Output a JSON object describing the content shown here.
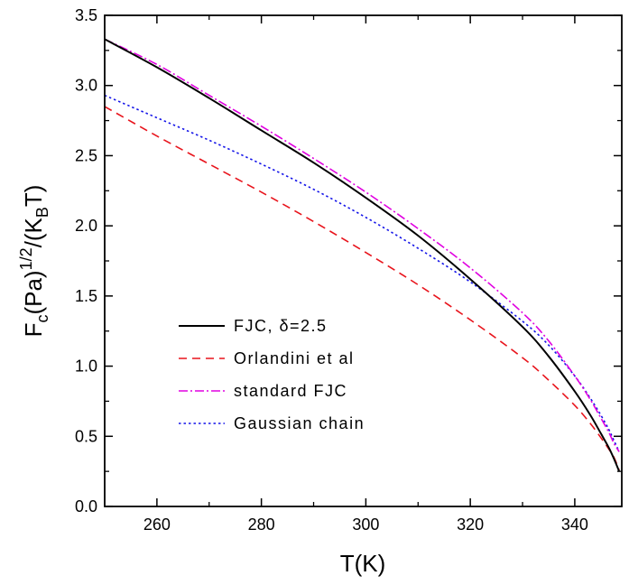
{
  "chart_data": {
    "type": "line",
    "xlabel": "T(K)",
    "ylabel": {
      "base": "F",
      "sub1": "c",
      "mid1": "(Pa)",
      "sup": "1/2",
      "mid2": "/(K",
      "sub2": "B",
      "end": "T)"
    },
    "xlim": [
      250,
      349
    ],
    "ylim": [
      0.0,
      3.5
    ],
    "xticks": [
      260,
      280,
      300,
      320,
      340
    ],
    "yticks": [
      "0.0",
      "0.5",
      "1.0",
      "1.5",
      "2.0",
      "2.5",
      "3.0",
      "3.5"
    ],
    "grid": false,
    "legend_position": "lower-left",
    "series": [
      {
        "name": "FJC, δ=2.5",
        "color": "#000000",
        "dash": "solid",
        "x": [
          250,
          260,
          270,
          280,
          290,
          300,
          310,
          320,
          330,
          335,
          340,
          343,
          345,
          346.5,
          347.5,
          348.5
        ],
        "y": [
          3.33,
          3.13,
          2.91,
          2.68,
          2.45,
          2.2,
          1.93,
          1.62,
          1.28,
          1.07,
          0.82,
          0.65,
          0.52,
          0.42,
          0.34,
          0.25
        ]
      },
      {
        "name": "Orlandini et al",
        "color": "#e8141c",
        "dash": "dashed",
        "x": [
          250,
          260,
          270,
          280,
          290,
          300,
          310,
          320,
          330,
          335,
          340,
          343,
          345,
          346.5,
          347.5,
          348.5
        ],
        "y": [
          2.85,
          2.64,
          2.44,
          2.24,
          2.03,
          1.81,
          1.58,
          1.33,
          1.06,
          0.9,
          0.72,
          0.59,
          0.49,
          0.41,
          0.35,
          0.26
        ]
      },
      {
        "name": "standard FJC",
        "color": "#e000e0",
        "dash": "dashdot",
        "x": [
          250,
          260,
          270,
          280,
          290,
          300,
          310,
          320,
          330,
          335,
          340,
          343,
          345,
          346.5,
          347.5,
          348.5
        ],
        "y": [
          3.33,
          3.15,
          2.93,
          2.71,
          2.48,
          2.24,
          1.98,
          1.7,
          1.38,
          1.18,
          0.93,
          0.76,
          0.63,
          0.53,
          0.45,
          0.39
        ]
      },
      {
        "name": "Gaussian chain",
        "color": "#1414e8",
        "dash": "dotted",
        "x": [
          250,
          260,
          270,
          280,
          290,
          300,
          310,
          320,
          330,
          335,
          340,
          343,
          345,
          346.5,
          347.5,
          348.5
        ],
        "y": [
          2.93,
          2.77,
          2.61,
          2.44,
          2.26,
          2.06,
          1.84,
          1.6,
          1.32,
          1.15,
          0.93,
          0.77,
          0.65,
          0.55,
          0.47,
          0.39
        ]
      }
    ]
  }
}
